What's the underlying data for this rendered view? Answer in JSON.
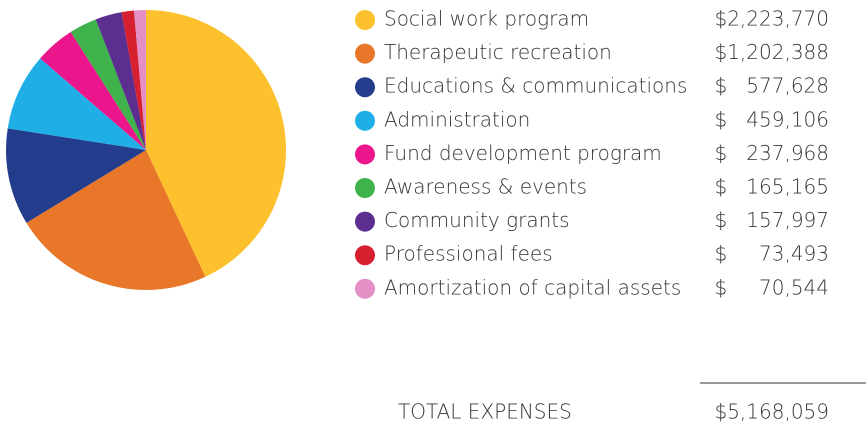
{
  "chart_data": {
    "type": "pie",
    "categories": [
      "Social work program",
      "Therapeutic recreation",
      "Educations & communications",
      "Administration",
      "Fund development program",
      "Awareness & events",
      "Community grants",
      "Professional fees",
      "Amortization of capital assets"
    ],
    "values": [
      2223770,
      1202388,
      577628,
      459106,
      237968,
      165165,
      157997,
      73493,
      70544
    ],
    "value_labels": [
      "$2,223,770",
      "$1,202,388",
      "$   577,628",
      "$   459,106",
      "$   237,968",
      "$   165,165",
      "$   157,997",
      "$     73,493",
      "$     70,544"
    ],
    "colors": [
      "#fcc12d",
      "#e8772a",
      "#233c8c",
      "#1fafe6",
      "#ec168c",
      "#40b24b",
      "#5b2e8f",
      "#d6202f",
      "#e48fc5"
    ],
    "total_label": "TOTAL EXPENSES",
    "total": 5168059,
    "total_value_label": "$5,168,059"
  }
}
